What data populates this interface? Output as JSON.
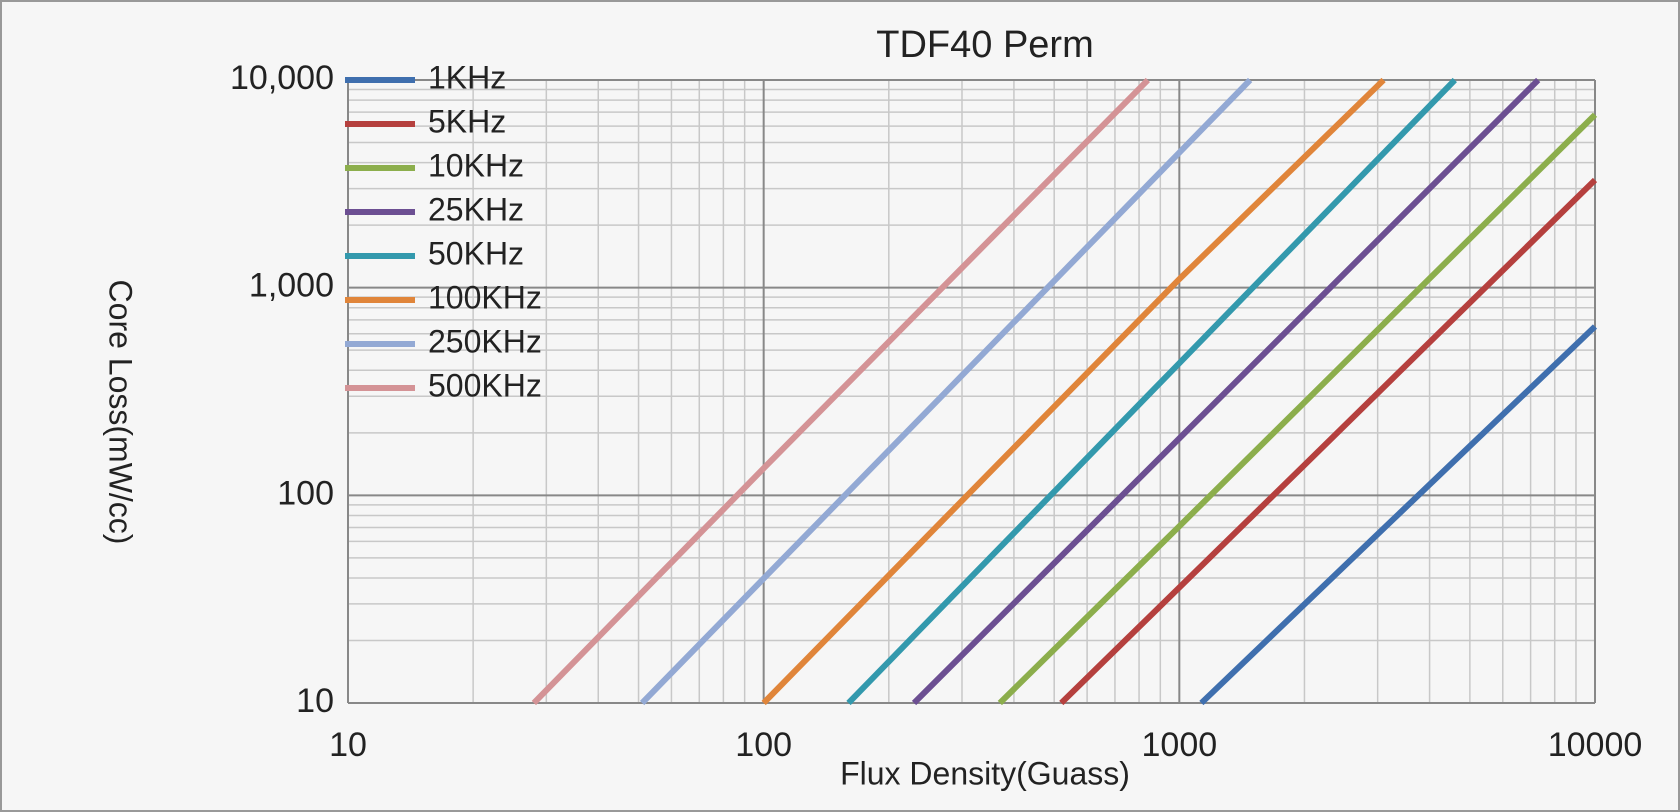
{
  "chart_data": {
    "type": "line",
    "title": "TDF40 Perm",
    "x_label": "Flux Density(Guass)",
    "y_label": "Core Loss(mW/cc)",
    "x_log": true,
    "y_log": true,
    "grid": true,
    "minor_grid": true,
    "legend": "upper left",
    "xlim": [
      10,
      10000
    ],
    "ylim": [
      10,
      10000
    ],
    "xticks": [
      10,
      100,
      1000,
      10000
    ],
    "yticks": [
      10,
      100,
      {
        "value": 1000,
        "label": "1,000"
      },
      {
        "value": 10000,
        "label": "10,000"
      }
    ],
    "series": [
      {
        "name": "1KHz",
        "color": "#3f6fae",
        "x": [
          1130,
          3000,
          10000
        ],
        "values": [
          10,
          65,
          650
        ]
      },
      {
        "name": "5KHz",
        "color": "#b5403e",
        "x": [
          520,
          2000,
          10000
        ],
        "values": [
          10,
          140,
          3300
        ]
      },
      {
        "name": "10KHz",
        "color": "#8cae4c",
        "x": [
          370,
          1000,
          10000
        ],
        "values": [
          10,
          71,
          6800
        ]
      },
      {
        "name": "25KHz",
        "color": "#6c4f92",
        "x": [
          230,
          1000,
          7300
        ],
        "values": [
          10,
          188,
          10000
        ]
      },
      {
        "name": "50KHz",
        "color": "#3399ad",
        "x": [
          160,
          1000,
          4600
        ],
        "values": [
          10,
          433,
          10000
        ]
      },
      {
        "name": "100KHz",
        "color": "#e0853a",
        "x": [
          100,
          1000,
          3100
        ],
        "values": [
          10,
          1100,
          10000
        ]
      },
      {
        "name": "250KHz",
        "color": "#93a9d4",
        "x": [
          51,
          300,
          1480
        ],
        "values": [
          10,
          378,
          10000
        ]
      },
      {
        "name": "500KHz",
        "color": "#d49396",
        "x": [
          28,
          100,
          840
        ],
        "values": [
          10,
          135,
          10000
        ]
      }
    ]
  }
}
